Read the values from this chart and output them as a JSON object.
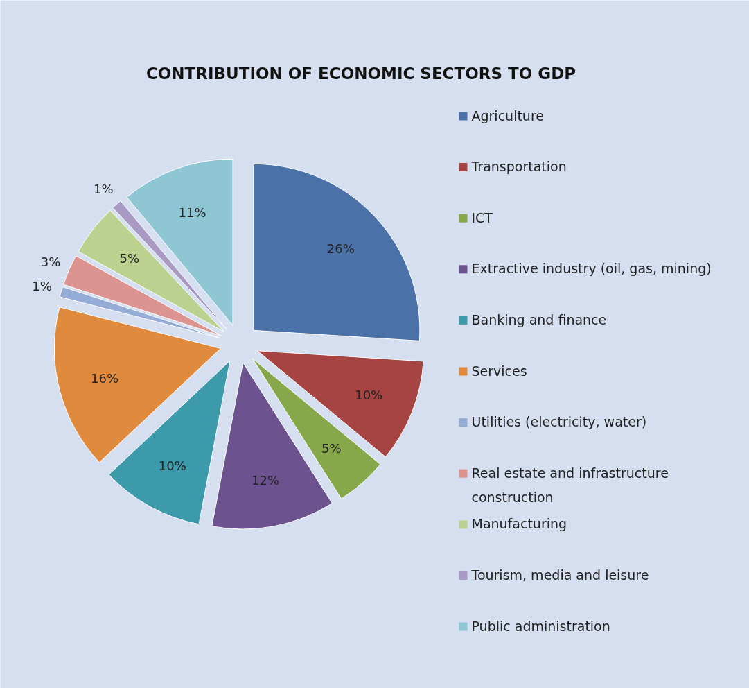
{
  "chart_data": {
    "type": "pie",
    "title": "CONTRIBUTION OF ECONOMIC SECTORS TO GDP",
    "categories": [
      "Agriculture",
      "Transportation",
      "ICT",
      "Extractive industry (oil, gas, mining)",
      "Banking and finance",
      "Services",
      "Utilities (electricity, water)",
      "Real estate and infrastructure construction",
      "Manufacturing",
      "Tourism, media and leisure",
      "Public administration"
    ],
    "values": [
      26,
      10,
      5,
      12,
      10,
      16,
      1,
      3,
      5,
      1,
      11
    ],
    "value_labels": [
      "26%",
      "10%",
      "5%",
      "12%",
      "10%",
      "16%",
      "1%",
      "3%",
      "5%",
      "1%",
      "11%"
    ],
    "colors": [
      "#4a72a8",
      "#a54442",
      "#86a84a",
      "#6c5390",
      "#3d9aaa",
      "#e08a3e",
      "#95acd6",
      "#dc9490",
      "#bcd18f",
      "#a99ac3",
      "#8fc6d4"
    ],
    "legend": "right"
  }
}
